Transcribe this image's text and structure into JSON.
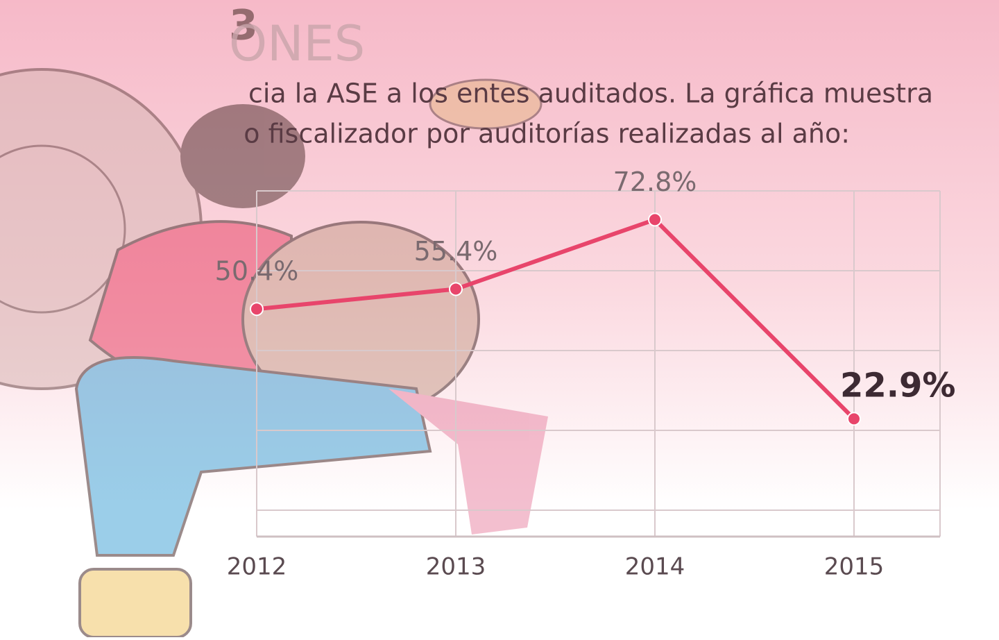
{
  "header": {
    "number": "3",
    "title": "ONES",
    "subtitle_lines": [
      "cia la ASE a los entes auditados. La gráfica muestra",
      "o fiscalizador por auditorías realizadas al año:"
    ]
  },
  "chart_data": {
    "type": "line",
    "categories": [
      "2012",
      "2013",
      "2014",
      "2015"
    ],
    "values": [
      50.4,
      55.4,
      72.8,
      22.9
    ],
    "value_labels": [
      "50.4%",
      "55.4%",
      "72.8%",
      "22.9%"
    ],
    "color": "#e8456b",
    "ylim": [
      -6.6,
      80
    ],
    "grid_values": [
      0,
      20,
      40,
      60,
      80
    ],
    "grid": true
  }
}
